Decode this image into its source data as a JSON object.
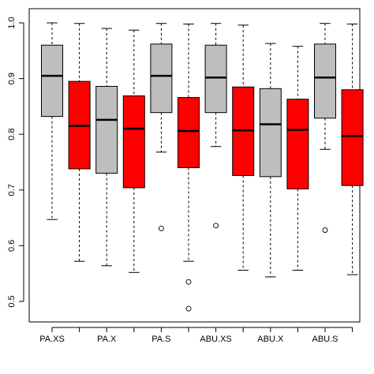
{
  "chart_data": {
    "type": "boxplot",
    "title": "",
    "xlabel": "",
    "ylabel": "",
    "ylim": [
      0.48,
      1.02
    ],
    "yticks": [
      0.5,
      0.6,
      0.7,
      0.8,
      0.9,
      1.0
    ],
    "ytick_labels": [
      "0.5",
      "0.6",
      "0.7",
      "0.8",
      "0.9",
      "1.0"
    ],
    "xtick_labels": [
      "PA.XS",
      "PA.X",
      "PA.S",
      "ABU.XS",
      "ABU.X",
      "ABU.S"
    ],
    "colors": {
      "gray": "#bebebe",
      "red": "#ff0000"
    },
    "boxes": [
      {
        "color": "gray",
        "whisker_low": 0.647,
        "q1": 0.832,
        "median": 0.905,
        "q3": 0.96,
        "whisker_high": 1.0,
        "outliers": []
      },
      {
        "color": "red",
        "whisker_low": 0.572,
        "q1": 0.738,
        "median": 0.815,
        "q3": 0.895,
        "whisker_high": 0.999,
        "outliers": []
      },
      {
        "color": "gray",
        "whisker_low": 0.564,
        "q1": 0.73,
        "median": 0.826,
        "q3": 0.886,
        "whisker_high": 0.99,
        "outliers": []
      },
      {
        "color": "red",
        "whisker_low": 0.552,
        "q1": 0.704,
        "median": 0.81,
        "q3": 0.869,
        "whisker_high": 0.987,
        "outliers": []
      },
      {
        "color": "gray",
        "whisker_low": 0.768,
        "q1": 0.839,
        "median": 0.905,
        "q3": 0.962,
        "whisker_high": 0.999,
        "outliers": [
          0.631
        ]
      },
      {
        "color": "red",
        "whisker_low": 0.572,
        "q1": 0.74,
        "median": 0.806,
        "q3": 0.866,
        "whisker_high": 0.998,
        "outliers": [
          0.535,
          0.487
        ]
      },
      {
        "color": "gray",
        "whisker_low": 0.778,
        "q1": 0.839,
        "median": 0.902,
        "q3": 0.96,
        "whisker_high": 0.999,
        "outliers": [
          0.636
        ]
      },
      {
        "color": "red",
        "whisker_low": 0.556,
        "q1": 0.726,
        "median": 0.807,
        "q3": 0.885,
        "whisker_high": 0.996,
        "outliers": []
      },
      {
        "color": "gray",
        "whisker_low": 0.544,
        "q1": 0.724,
        "median": 0.818,
        "q3": 0.882,
        "whisker_high": 0.963,
        "outliers": []
      },
      {
        "color": "red",
        "whisker_low": 0.556,
        "q1": 0.702,
        "median": 0.808,
        "q3": 0.863,
        "whisker_high": 0.958,
        "outliers": []
      },
      {
        "color": "gray",
        "whisker_low": 0.773,
        "q1": 0.829,
        "median": 0.902,
        "q3": 0.962,
        "whisker_high": 0.999,
        "outliers": [
          0.628
        ]
      },
      {
        "color": "red",
        "whisker_low": 0.548,
        "q1": 0.708,
        "median": 0.797,
        "q3": 0.88,
        "whisker_high": 0.998,
        "outliers": []
      }
    ]
  }
}
